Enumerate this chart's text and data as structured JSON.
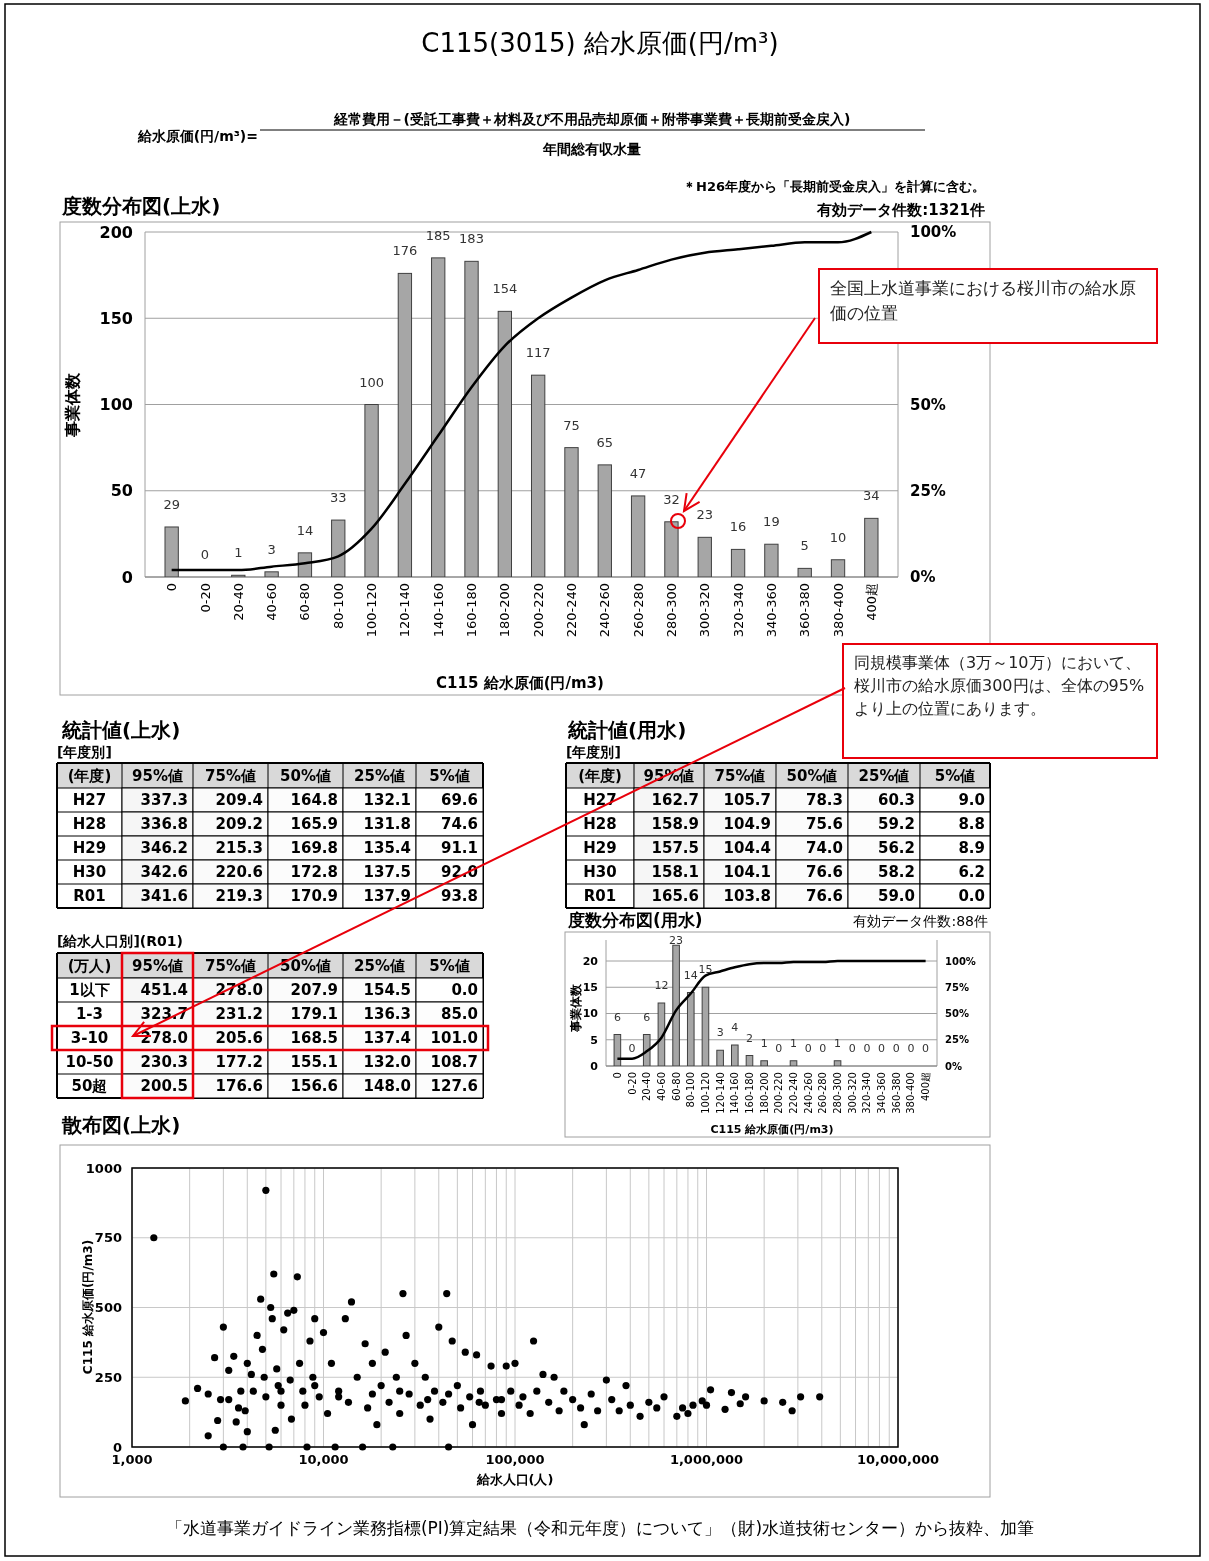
{
  "chart_data": [
    {
      "type": "bar",
      "title": "度数分布図(上水)",
      "xlabel": "C115 給水原価(円/m3)",
      "ylabel": "事業体数",
      "categories": [
        "0",
        "0-20",
        "20-40",
        "40-60",
        "60-80",
        "80-100",
        "100-120",
        "120-140",
        "140-160",
        "160-180",
        "180-200",
        "200-220",
        "220-240",
        "240-260",
        "260-280",
        "280-300",
        "300-320",
        "320-340",
        "340-360",
        "360-380",
        "380-400",
        "400超"
      ],
      "series": [
        {
          "type": "bar",
          "color": "#a6a6a6",
          "values": [
            29,
            0,
            1,
            3,
            14,
            33,
            100,
            176,
            185,
            183,
            154,
            117,
            75,
            65,
            47,
            32,
            23,
            16,
            19,
            5,
            10,
            34
          ],
          "value_labels": [
            "29",
            "0",
            "1",
            "3",
            "14",
            "33",
            "100",
            "176",
            "185",
            "183",
            "154",
            "117",
            "75",
            "65",
            "47",
            "32",
            "23",
            "16",
            "19",
            "5",
            "10",
            "34"
          ]
        },
        {
          "type": "line",
          "axis": "y2",
          "color": "#000000",
          "values": [
            2,
            2,
            2,
            3,
            4,
            6,
            14,
            27,
            41,
            55,
            67,
            75,
            81,
            86,
            89,
            92,
            94,
            95,
            96,
            97,
            97,
            100
          ]
        }
      ],
      "ylim": [
        0,
        200
      ],
      "yticks": [
        0,
        50,
        100,
        150,
        200
      ],
      "y2lim": [
        0,
        100
      ],
      "y2ticks": [
        {
          "value": 0,
          "label": "0%"
        },
        {
          "value": 25,
          "label": "25%"
        },
        {
          "value": 50,
          "label": "50%"
        },
        {
          "value": 100,
          "label": "100%"
        }
      ],
      "grid": "y",
      "annotations": [
        "C115(3015) 給水原価(円/m³)",
        "給水原価(円/m³)=",
        "経常費用－(受託工事費＋材料及び不用品売却原価＋附帯事業費＋長期前受金戻入)",
        "年間総有収水量",
        "＊H26年度から「長期前受金戻入」を計算に含む。",
        "有効データ件数:1321件",
        "全国上水道事業における桜川市の給水原価の位置"
      ]
    },
    {
      "type": "heatmap",
      "title": "統計値(上水)",
      "subtitle": "[年度別]",
      "ylabel": "(年度)",
      "categories": [
        "95%値",
        "75%値",
        "50%値",
        "25%値",
        "5%値"
      ],
      "y_categories": [
        "H27",
        "H28",
        "H29",
        "H30",
        "R01"
      ],
      "cells": [
        [
          337.3,
          209.4,
          164.8,
          132.1,
          69.6
        ],
        [
          336.8,
          209.2,
          165.9,
          131.8,
          74.6
        ],
        [
          346.2,
          215.3,
          169.8,
          135.4,
          91.1
        ],
        [
          342.6,
          220.6,
          172.8,
          137.5,
          92.0
        ],
        [
          341.6,
          219.3,
          170.9,
          137.9,
          93.8
        ]
      ],
      "cell_labels": [
        [
          "337.3",
          "209.4",
          "164.8",
          "132.1",
          "69.6"
        ],
        [
          "336.8",
          "209.2",
          "165.9",
          "131.8",
          "74.6"
        ],
        [
          "346.2",
          "215.3",
          "169.8",
          "135.4",
          "91.1"
        ],
        [
          "342.6",
          "220.6",
          "172.8",
          "137.5",
          "92.0"
        ],
        [
          "341.6",
          "219.3",
          "170.9",
          "137.9",
          "93.8"
        ]
      ]
    },
    {
      "type": "heatmap",
      "title": "統計値(用水)",
      "subtitle": "[年度別]",
      "ylabel": "(年度)",
      "categories": [
        "95%値",
        "75%値",
        "50%値",
        "25%値",
        "5%値"
      ],
      "y_categories": [
        "H27",
        "H28",
        "H29",
        "H30",
        "R01"
      ],
      "cells": [
        [
          162.7,
          105.7,
          78.3,
          60.3,
          9.0
        ],
        [
          158.9,
          104.9,
          75.6,
          59.2,
          8.8
        ],
        [
          157.5,
          104.4,
          74.0,
          56.2,
          8.9
        ],
        [
          158.1,
          104.1,
          76.6,
          58.2,
          6.2
        ],
        [
          165.6,
          103.8,
          76.6,
          59.0,
          0.0
        ]
      ],
      "cell_labels": [
        [
          "162.7",
          "105.7",
          "78.3",
          "60.3",
          "9.0"
        ],
        [
          "158.9",
          "104.9",
          "75.6",
          "59.2",
          "8.8"
        ],
        [
          "157.5",
          "104.4",
          "74.0",
          "56.2",
          "8.9"
        ],
        [
          "158.1",
          "104.1",
          "76.6",
          "58.2",
          "6.2"
        ],
        [
          "165.6",
          "103.8",
          "76.6",
          "59.0",
          "0.0"
        ]
      ]
    },
    {
      "type": "heatmap",
      "subtitle": "[給水人口別](R01)",
      "ylabel": "(万人)",
      "categories": [
        "95%値",
        "75%値",
        "50%値",
        "25%値",
        "5%値"
      ],
      "y_categories": [
        "1以下",
        "1-3",
        "3-10",
        "10-50",
        "50超"
      ],
      "cells": [
        [
          451.4,
          278.0,
          207.9,
          154.5,
          0.0
        ],
        [
          323.7,
          231.2,
          179.1,
          136.3,
          85.0
        ],
        [
          278.0,
          205.6,
          168.5,
          137.4,
          101.0
        ],
        [
          230.3,
          177.2,
          155.1,
          132.0,
          108.7
        ],
        [
          200.5,
          176.6,
          156.6,
          148.0,
          127.6
        ]
      ],
      "cell_labels": [
        [
          "451.4",
          "278.0",
          "207.9",
          "154.5",
          "0.0"
        ],
        [
          "323.7",
          "231.2",
          "179.1",
          "136.3",
          "85.0"
        ],
        [
          "278.0",
          "205.6",
          "168.5",
          "137.4",
          "101.0"
        ],
        [
          "230.3",
          "177.2",
          "155.1",
          "132.0",
          "108.7"
        ],
        [
          "200.5",
          "176.6",
          "156.6",
          "148.0",
          "127.6"
        ]
      ],
      "annotations": [
        "同規模事業体（3万～10万）において、桜川市の給水原価300円は、全体の95%より上の位置にあります。"
      ]
    },
    {
      "type": "bar",
      "title": "度数分布図(用水)",
      "xlabel": "C115 給水原価(円/m3)",
      "ylabel": "事業体数",
      "categories": [
        "0",
        "0-20",
        "20-40",
        "40-60",
        "60-80",
        "80-100",
        "100-120",
        "120-140",
        "140-160",
        "160-180",
        "180-200",
        "200-220",
        "220-240",
        "240-260",
        "260-280",
        "280-300",
        "300-320",
        "320-340",
        "340-360",
        "360-380",
        "380-400",
        "400超"
      ],
      "series": [
        {
          "type": "bar",
          "color": "#a6a6a6",
          "values": [
            6,
            0,
            6,
            12,
            23,
            14,
            15,
            3,
            4,
            2,
            1,
            0,
            1,
            0,
            0,
            1,
            0,
            0,
            0,
            0,
            0,
            0
          ],
          "value_labels": [
            "6",
            "0",
            "6",
            "12",
            "23",
            "14",
            "15",
            "3",
            "4",
            "2",
            "1",
            "0",
            "1",
            "0",
            "0",
            "1",
            "0",
            "0",
            "0",
            "0",
            "0",
            "0"
          ]
        },
        {
          "type": "line",
          "axis": "y2",
          "color": "#000000",
          "values": [
            7,
            7,
            14,
            27,
            53,
            69,
            86,
            90,
            94,
            97,
            98,
            98,
            99,
            99,
            99,
            100,
            100,
            100,
            100,
            100,
            100,
            100
          ]
        }
      ],
      "ylim": [
        0,
        24
      ],
      "yticks": [
        0,
        5,
        10,
        15,
        20
      ],
      "y2lim": [
        0,
        120
      ],
      "y2ticks": [
        {
          "value": 0,
          "label": "0%"
        },
        {
          "value": 25,
          "label": "25%"
        },
        {
          "value": 50,
          "label": "50%"
        },
        {
          "value": 75,
          "label": "75%"
        },
        {
          "value": 100,
          "label": "100%"
        }
      ],
      "grid": "y",
      "annotations": [
        "有効データ件数:88件"
      ]
    },
    {
      "type": "scatter",
      "title": "散布図(上水)",
      "xlabel": "給水人口(人)",
      "ylabel": "C115 給水原価(円/m3)",
      "log": "x",
      "marker": "circle",
      "grid": true,
      "xlim": [
        1000,
        10000000
      ],
      "ylim": [
        0,
        1000
      ],
      "yticks": [
        0,
        250,
        500,
        750,
        1000
      ],
      "xticks": [
        {
          "value": 1000,
          "label": "1,000"
        },
        {
          "value": 2000,
          "label": null
        },
        {
          "value": 3000,
          "label": null
        },
        {
          "value": 4000,
          "label": null
        },
        {
          "value": 5000,
          "label": null
        },
        {
          "value": 6000,
          "label": null
        },
        {
          "value": 7000,
          "label": null
        },
        {
          "value": 8000,
          "label": null
        },
        {
          "value": 9000,
          "label": null
        },
        {
          "value": 10000,
          "label": "10,000"
        },
        {
          "value": 20000,
          "label": null
        },
        {
          "value": 30000,
          "label": null
        },
        {
          "value": 40000,
          "label": null
        },
        {
          "value": 50000,
          "label": null
        },
        {
          "value": 60000,
          "label": null
        },
        {
          "value": 70000,
          "label": null
        },
        {
          "value": 80000,
          "label": null
        },
        {
          "value": 90000,
          "label": null
        },
        {
          "value": 100000,
          "label": "100,000"
        },
        {
          "value": 200000,
          "label": null
        },
        {
          "value": 300000,
          "label": null
        },
        {
          "value": 400000,
          "label": null
        },
        {
          "value": 500000,
          "label": null
        },
        {
          "value": 600000,
          "label": null
        },
        {
          "value": 700000,
          "label": null
        },
        {
          "value": 800000,
          "label": null
        },
        {
          "value": 900000,
          "label": null
        },
        {
          "value": 1000000,
          "label": "1,000,000"
        },
        {
          "value": 2000000,
          "label": null
        },
        {
          "value": 3000000,
          "label": null
        },
        {
          "value": 4000000,
          "label": null
        },
        {
          "value": 5000000,
          "label": null
        },
        {
          "value": 6000000,
          "label": null
        },
        {
          "value": 7000000,
          "label": null
        },
        {
          "value": 8000000,
          "label": null
        },
        {
          "value": 9000000,
          "label": null
        },
        {
          "value": 10000000,
          "label": "10,000,000"
        }
      ],
      "series": [
        {
          "color": "#000000",
          "x": [
            1300,
            1900,
            2200,
            2500,
            2500,
            2700,
            2800,
            2900,
            3000,
            3000,
            3200,
            3200,
            3400,
            3500,
            3600,
            3700,
            3800,
            3900,
            4000,
            4000,
            4200,
            4300,
            4500,
            4700,
            4800,
            4900,
            5000,
            5000,
            5200,
            5300,
            5400,
            5500,
            5600,
            5700,
            5800,
            6000,
            6200,
            6500,
            6700,
            6800,
            7000,
            7300,
            7500,
            7800,
            8000,
            8200,
            8500,
            8800,
            9000,
            9500,
            10000,
            10500,
            11000,
            11500,
            12000,
            13000,
            13500,
            14000,
            15000,
            16000,
            16500,
            17000,
            18000,
            19000,
            20000,
            21000,
            22000,
            23000,
            24000,
            25000,
            26000,
            27000,
            28000,
            30000,
            32000,
            34000,
            36000,
            38000,
            40000,
            42000,
            44000,
            45000,
            47000,
            50000,
            52000,
            55000,
            58000,
            60000,
            63000,
            66000,
            70000,
            75000,
            80000,
            85000,
            90000,
            95000,
            100000,
            105000,
            110000,
            120000,
            125000,
            130000,
            140000,
            150000,
            160000,
            170000,
            180000,
            200000,
            220000,
            230000,
            250000,
            270000,
            300000,
            320000,
            350000,
            380000,
            400000,
            450000,
            500000,
            550000,
            600000,
            700000,
            750000,
            800000,
            850000,
            950000,
            1000000,
            1050000,
            1250000,
            1350000,
            1500000,
            1600000,
            2000000,
            2500000,
            2800000,
            3100000,
            3900000,
            6000,
            9000,
            12000,
            18000,
            25000,
            35000,
            45000,
            65000,
            85000
          ],
          "values": [
            750,
            165,
            210,
            190,
            40,
            320,
            95,
            170,
            430,
            0,
            275,
            170,
            325,
            90,
            140,
            200,
            0,
            130,
            55,
            300,
            260,
            200,
            400,
            530,
            350,
            250,
            920,
            180,
            0,
            500,
            460,
            620,
            60,
            280,
            220,
            150,
            420,
            480,
            240,
            100,
            490,
            610,
            300,
            200,
            150,
            0,
            380,
            250,
            460,
            180,
            410,
            120,
            300,
            0,
            200,
            460,
            160,
            520,
            250,
            0,
            370,
            140,
            300,
            80,
            220,
            340,
            160,
            0,
            250,
            120,
            550,
            400,
            190,
            300,
            150,
            250,
            100,
            200,
            430,
            160,
            550,
            0,
            380,
            220,
            140,
            340,
            180,
            80,
            330,
            200,
            150,
            290,
            170,
            120,
            290,
            200,
            300,
            150,
            180,
            120,
            380,
            200,
            260,
            160,
            250,
            130,
            200,
            170,
            140,
            80,
            190,
            130,
            240,
            170,
            130,
            220,
            150,
            110,
            160,
            140,
            180,
            110,
            140,
            120,
            150,
            165,
            150,
            205,
            135,
            195,
            155,
            180,
            165,
            160,
            130,
            180,
            180,
            200,
            220,
            180,
            190,
            200,
            170,
            190,
            160,
            170
          ]
        }
      ],
      "annotations": [
        "「水道事業ガイドライン業務指標(PI)算定結果（令和元年度）について」（財)水道技術センター）から抜粋、加筆"
      ]
    }
  ]
}
